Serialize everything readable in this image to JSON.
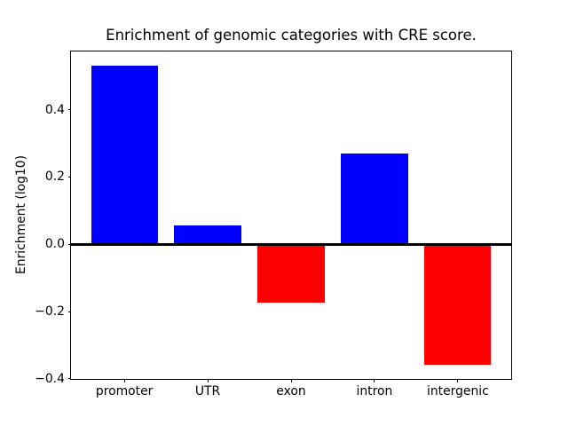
{
  "figure": {
    "title": "Enrichment of genomic categories with CRE score.",
    "ylabel": "Enrichment (log10)"
  },
  "chart_data": {
    "type": "bar",
    "title": "Enrichment of genomic categories with CRE score.",
    "xlabel": "",
    "ylabel": "Enrichment (log10)",
    "categories": [
      "promoter",
      "UTR",
      "exon",
      "intron",
      "intergenic"
    ],
    "values": [
      0.532,
      0.057,
      -0.174,
      0.269,
      -0.357
    ],
    "bar_colors": [
      "#0000ff",
      "#0000ff",
      "#ff0000",
      "#0000ff",
      "#ff0000"
    ],
    "positive_color": "#0000ff",
    "negative_color": "#ff0000",
    "ylim": [
      -0.401,
      0.574
    ],
    "yticks": [
      -0.4,
      -0.2,
      0.0,
      0.2,
      0.4
    ],
    "ytick_labels": [
      "−0.4",
      "−0.2",
      "0.0",
      "0.2",
      "0.4"
    ],
    "zero_line": true,
    "zero_line_color": "#000000",
    "grid": false,
    "legend_position": "none",
    "background_color": "#ffffff"
  }
}
